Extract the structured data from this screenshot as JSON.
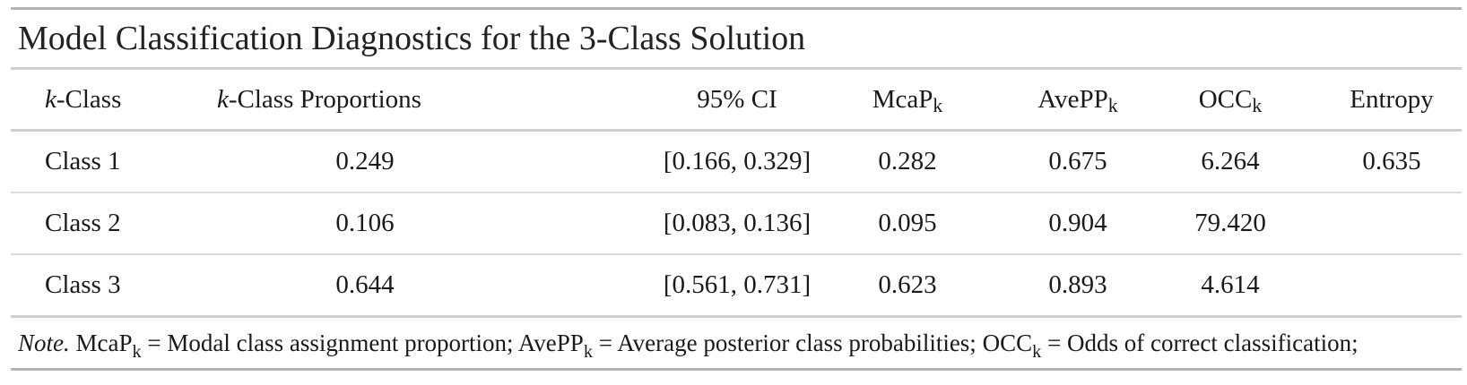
{
  "table": {
    "title": "Model Classification Diagnostics for the 3-Class Solution",
    "headers": {
      "class": {
        "italic": "k",
        "rest": "-Class"
      },
      "proportions": {
        "italic": "k",
        "rest": "-Class Proportions"
      },
      "ci": "95% CI",
      "mcap": {
        "base": "McaP",
        "sub": "k"
      },
      "avepp": {
        "base": "AvePP",
        "sub": "k"
      },
      "occ": {
        "base": "OCC",
        "sub": "k"
      },
      "entropy": "Entropy"
    },
    "rows": [
      {
        "class": "Class 1",
        "proportion": "0.249",
        "ci": "[0.166, 0.329]",
        "mcap": "0.282",
        "avepp": "0.675",
        "occ": "6.264",
        "entropy": "0.635"
      },
      {
        "class": "Class 2",
        "proportion": "0.106",
        "ci": "[0.083, 0.136]",
        "mcap": "0.095",
        "avepp": "0.904",
        "occ": "79.420",
        "entropy": ""
      },
      {
        "class": "Class 3",
        "proportion": "0.644",
        "ci": "[0.561, 0.731]",
        "mcap": "0.623",
        "avepp": "0.893",
        "occ": "4.614",
        "entropy": ""
      }
    ],
    "note": {
      "label": "Note.",
      "parts": [
        {
          "base": "McaP",
          "sub": "k",
          "text": " = Modal class assignment proportion; "
        },
        {
          "base": "AvePP",
          "sub": "k",
          "text": " = Average posterior class probabilities; "
        },
        {
          "base": "OCC",
          "sub": "k",
          "text": " = Odds of correct classification;"
        }
      ]
    }
  }
}
